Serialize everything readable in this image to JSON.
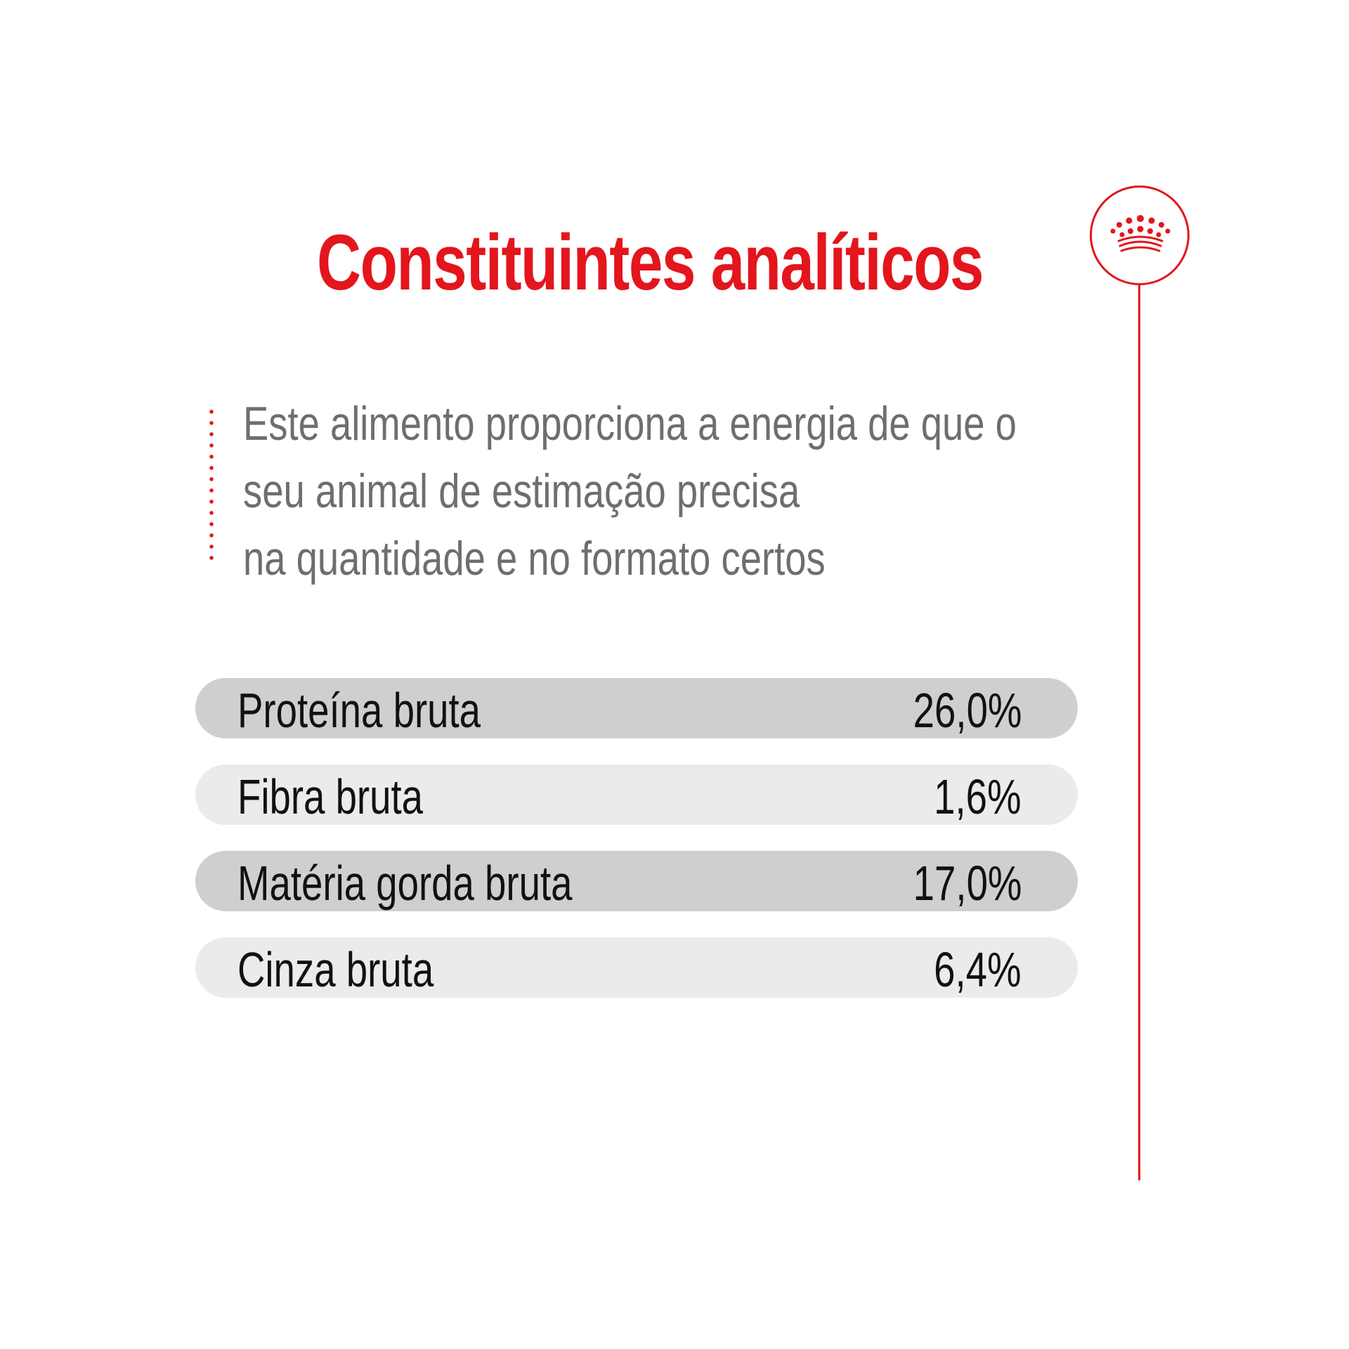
{
  "header": {
    "title": "Constituintes analíticos"
  },
  "brand": {
    "icon": "crown-icon",
    "accent_color": "#e3151d"
  },
  "description": {
    "lines": [
      "Este alimento proporciona a energia de que o",
      "seu animal de estimação precisa",
      "na quantidade e no formato certos"
    ]
  },
  "nutrients": [
    {
      "label": "Proteína bruta",
      "value": "26,0%"
    },
    {
      "label": "Fibra bruta",
      "value": "1,6%"
    },
    {
      "label": "Matéria gorda bruta",
      "value": "17,0%"
    },
    {
      "label": "Cinza bruta",
      "value": "6,4%"
    }
  ],
  "colors": {
    "title": "#e3151d",
    "text": "#6e6e6e",
    "row_dark": "#cfcfcf",
    "row_light": "#ebebeb"
  }
}
